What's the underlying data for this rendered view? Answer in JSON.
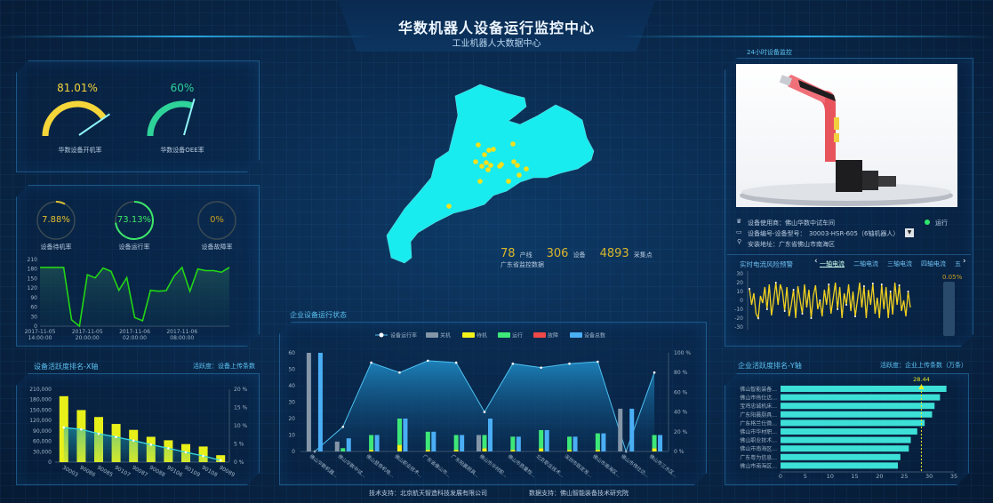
{
  "header": {
    "title": "华数机器人设备运行监控中心",
    "subtitle": "工业机器人大数据中心"
  },
  "colors": {
    "accent": "#5cc4f5",
    "yellow": "#f5d63a",
    "green": "#2ed39a",
    "cyan": "#19ecee",
    "bar_cyan": "#3de0d6",
    "line_green": "#22d614"
  },
  "gauges": [
    {
      "value": 81.01,
      "text": "81.01%",
      "label": "华数设备开机率",
      "color": "#f5d63a"
    },
    {
      "value": 60,
      "text": "60%",
      "label": "华数设备OEE率",
      "color": "#2ed39a"
    }
  ],
  "rings": [
    {
      "value": 7.88,
      "text": "7.88%",
      "label": "设备待机率",
      "color": "#e0c030"
    },
    {
      "value": 73.13,
      "text": "73.13%",
      "label": "设备运行率",
      "color": "#3ee86a"
    },
    {
      "value": 0,
      "text": "0%",
      "label": "设备故障率",
      "color": "#c9a020"
    }
  ],
  "map": {
    "stats": [
      {
        "value": "78",
        "unit": "产线"
      },
      {
        "value": "306",
        "unit": "设备"
      },
      {
        "value": "4893",
        "unit": "采集点"
      }
    ],
    "caption": "广东省监控数据"
  },
  "x_rank": {
    "title": "设备活跃度排名-X轴",
    "note": "活跃度：设备上传条数"
  },
  "enterprise": {
    "title": "企业设备运行状态"
  },
  "monitor": {
    "title": "24小时设备监控",
    "user_label": "设备使用商：佛山华数中试车间",
    "status": "运行",
    "model_label": "设备编号-设备型号：",
    "model_value": "30003-HSR-605（6轴机器人）",
    "address_label": "安装地址：广东省佛山市南海区"
  },
  "current": {
    "title": "实时电流风险预警",
    "tabs": [
      "一轴电流",
      "二轴电流",
      "三轴电流",
      "四轴电流",
      "五"
    ],
    "active_tab": 0,
    "risk_text": "0.05%",
    "risk_value": 0.05
  },
  "y_rank": {
    "title": "企业活跃度排名-Y轴",
    "note": "活跃度：企业上传条数（万条）"
  },
  "footer": {
    "tech": "技术支持：北京航天智造科技发展有限公司",
    "data": "数据支持：佛山智能装备技术研究院"
  },
  "chart_data": [
    {
      "id": "running_trend",
      "type": "area",
      "ylim": [
        0,
        210
      ],
      "yticks": [
        "0",
        "30",
        "60",
        "90",
        "120",
        "150",
        "180",
        "210"
      ],
      "xticks": [
        "2017-11-05 14:00:00",
        "2017-11-05 20:00:00",
        "2017-11-06 02:00:00",
        "2017-11-06 08:00:00"
      ],
      "values": [
        185,
        185,
        185,
        185,
        20,
        0,
        162,
        152,
        183,
        173,
        113,
        153,
        27,
        17,
        113,
        110,
        112,
        158,
        185,
        110,
        180,
        175,
        175,
        170,
        185
      ]
    },
    {
      "id": "x_rank",
      "type": "bar",
      "categories": [
        "30003",
        "90086",
        "90085",
        "90107",
        "90087",
        "90088",
        "90106",
        "90109",
        "90108",
        "90089"
      ],
      "values": [
        190000,
        150000,
        130000,
        110000,
        93000,
        73000,
        63000,
        52000,
        45000,
        20000
      ],
      "line_values": [
        9.5,
        9,
        7.8,
        6.9,
        5.9,
        4.8,
        3.8,
        2.7,
        1.7,
        0.5
      ],
      "ylim": [
        0,
        210000
      ],
      "yticks": [
        "0",
        "30,000",
        "60,000",
        "90,000",
        "120,000",
        "150,000",
        "180,000",
        "210,000"
      ],
      "y2lim": [
        0,
        20
      ],
      "y2ticks": [
        "0 %",
        "5 %",
        "10 %",
        "15 %",
        "20 %"
      ]
    },
    {
      "id": "enterprise_status",
      "type": "bar",
      "legend": [
        "设备运行率",
        "关机",
        "待机",
        "运行",
        "故障",
        "设备总数"
      ],
      "categories": [
        "佛山华数机器...",
        "佛山华数中试...",
        "佛山登奇机电...",
        "佛山职业技术...",
        "广东省佛山市...",
        "广东阳晨厨具...",
        "佛山市华材职...",
        "佛山市质量检...",
        "北京职业技术...",
        "深圳市既定发...",
        "佛山市南海区...",
        "佛山市伟仕达...",
        "佛山市三水区..."
      ],
      "series": [
        {
          "name": "关机",
          "color": "#8496a8",
          "values": [
            60,
            6,
            0,
            0,
            0,
            0,
            10,
            0,
            0,
            0,
            0,
            26,
            0
          ]
        },
        {
          "name": "待机",
          "color": "#f2f21a",
          "values": [
            0,
            0,
            1,
            4,
            1,
            1,
            2,
            1,
            2,
            1,
            1,
            0,
            2
          ]
        },
        {
          "name": "运行",
          "color": "#3ee878",
          "values": [
            0,
            2,
            9,
            16,
            11,
            9,
            8,
            8,
            11,
            8,
            10,
            0,
            8
          ]
        },
        {
          "name": "故障",
          "color": "#f04848",
          "values": [
            0,
            0,
            0,
            0,
            0,
            0,
            0,
            0,
            0,
            0,
            0,
            0,
            0
          ]
        },
        {
          "name": "设备总数",
          "color": "#4aaef5",
          "values": [
            60,
            8,
            10,
            20,
            12,
            10,
            20,
            9,
            13,
            9,
            11,
            26,
            10
          ]
        },
        {
          "name": "设备运行率",
          "color": "#4cc0f0",
          "values": [
            0,
            25,
            90,
            80,
            92,
            90,
            40,
            89,
            85,
            89,
            91,
            0,
            80
          ]
        }
      ],
      "ylim": [
        0,
        60
      ],
      "yticks": [
        "0",
        "10",
        "20",
        "30",
        "40",
        "50",
        "60"
      ],
      "y2lim": [
        0,
        100
      ],
      "y2ticks": [
        "0 %",
        "20 %",
        "40 %",
        "60 %",
        "80 %",
        "100 %"
      ]
    },
    {
      "id": "current",
      "type": "line",
      "ylim": [
        -30,
        30
      ],
      "yticks": [
        "30",
        "20",
        "10",
        "0",
        "-10",
        "-20",
        "-30"
      ],
      "values": [
        13,
        -5,
        8,
        -15,
        -20,
        5,
        -3,
        15,
        -10,
        18,
        -17,
        0,
        20,
        -5,
        18,
        10,
        -12,
        15,
        -18,
        -5,
        12,
        -20,
        16,
        0,
        -15,
        18,
        -8,
        12,
        -20,
        5,
        17,
        -10,
        0,
        -18,
        12,
        -5,
        18,
        -15,
        2,
        20,
        -10,
        15,
        -20,
        8,
        -5,
        18,
        -12,
        10,
        -18,
        0,
        20,
        -8,
        16,
        -20,
        12,
        -5,
        19,
        -15,
        3,
        -20,
        18,
        -10,
        15,
        -20,
        10,
        -16,
        20,
        -5,
        17,
        -12,
        0,
        -18,
        10,
        -8
      ]
    },
    {
      "id": "y_rank",
      "type": "bar",
      "orientation": "horizontal",
      "categories": [
        "佛山智能装备...",
        "佛山市伟仕达...",
        "宝鸡忠诚机床...",
        "广东阳晨厨具...",
        "广东格兰仕微...",
        "佛山市华材职...",
        "佛山职业技术...",
        "佛山市南海区...",
        "广东粤为信息...",
        "佛山市南海区..."
      ],
      "values": [
        33.5,
        32.2,
        31.1,
        30.6,
        29.1,
        27.6,
        26.3,
        25.9,
        24.2,
        23.7
      ],
      "average": 28.44,
      "average_label": "28.44",
      "xlim": [
        0,
        35
      ],
      "xticks": [
        "0",
        "5",
        "10",
        "15",
        "20",
        "25",
        "30",
        "35"
      ]
    }
  ]
}
